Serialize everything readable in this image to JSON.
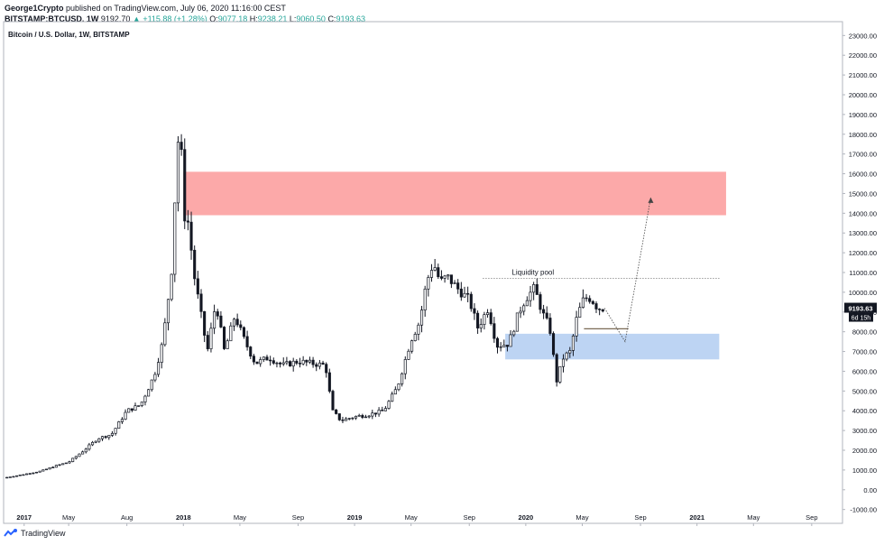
{
  "header": {
    "author": "George1Crypto",
    "published": "published on TradingView.com, July 06, 2020 11:16:00 CEST",
    "symbol": "BITSTAMP:BTCUSD, 1W",
    "last": "9192.70",
    "change": "▲ +115.88 (+1.28%)",
    "o_label": "O:",
    "o_value": "9077.18",
    "h_label": "H:",
    "h_value": "9238.21",
    "l_label": "L:",
    "l_value": "9060.50",
    "c_label": "C:",
    "c_value": "9193.63"
  },
  "footer": {
    "brand": "TradingView"
  },
  "colors": {
    "candle": "#131722",
    "resistance_zone": "#fca9a9",
    "support_zone": "#bdd4f3",
    "grid_border": "#b2b5be"
  },
  "chart_data": {
    "type": "candlestick",
    "title": "Bitcoin / U.S. Dollar, 1W, BITSTAMP",
    "y_ticks": [
      "23000.00",
      "22000.00",
      "21000.00",
      "20000.00",
      "19000.00",
      "18000.00",
      "17000.00",
      "16000.00",
      "15000.00",
      "14000.00",
      "13000.00",
      "12000.00",
      "11000.00",
      "10000.00",
      "9000.00",
      "8000.00",
      "7000.00",
      "6000.00",
      "5000.00",
      "4000.00",
      "3000.00",
      "2000.00",
      "1000.00",
      "0.00",
      "-1000.00"
    ],
    "ylim": [
      -1700,
      23700
    ],
    "x_ticks": [
      {
        "t": 0.07,
        "label": "2017",
        "bold": true
      },
      {
        "t": 0.33,
        "label": "May",
        "bold": false
      },
      {
        "t": 0.67,
        "label": "Aug",
        "bold": false
      },
      {
        "t": 1.0,
        "label": "2018",
        "bold": true
      },
      {
        "t": 1.33,
        "label": "May",
        "bold": false
      },
      {
        "t": 1.67,
        "label": "Sep",
        "bold": false
      },
      {
        "t": 2.0,
        "label": "2019",
        "bold": true
      },
      {
        "t": 2.33,
        "label": "May",
        "bold": false
      },
      {
        "t": 2.67,
        "label": "Sep",
        "bold": false
      },
      {
        "t": 3.0,
        "label": "2020",
        "bold": true
      },
      {
        "t": 3.33,
        "label": "May",
        "bold": false
      },
      {
        "t": 3.67,
        "label": "Sep",
        "bold": false
      },
      {
        "t": 4.0,
        "label": "2021",
        "bold": true
      },
      {
        "t": 4.33,
        "label": "May",
        "bold": false
      },
      {
        "t": 4.67,
        "label": "Sep",
        "bold": false
      }
    ],
    "price_path": [
      [
        -0.05,
        600
      ],
      [
        0.05,
        750
      ],
      [
        0.17,
        950
      ],
      [
        0.25,
        1200
      ],
      [
        0.33,
        1400
      ],
      [
        0.42,
        2000
      ],
      [
        0.5,
        2600
      ],
      [
        0.58,
        2800
      ],
      [
        0.67,
        4000
      ],
      [
        0.75,
        4300
      ],
      [
        0.83,
        5800
      ],
      [
        0.88,
        7500
      ],
      [
        0.93,
        11000
      ],
      [
        0.96,
        16500
      ],
      [
        0.98,
        19000
      ],
      [
        1.0,
        14000
      ],
      [
        1.03,
        13500
      ],
      [
        1.06,
        11000
      ],
      [
        1.1,
        9000
      ],
      [
        1.14,
        7000
      ],
      [
        1.19,
        9500
      ],
      [
        1.24,
        7000
      ],
      [
        1.3,
        8800
      ],
      [
        1.36,
        7500
      ],
      [
        1.42,
        6400
      ],
      [
        1.5,
        6700
      ],
      [
        1.58,
        6300
      ],
      [
        1.67,
        6500
      ],
      [
        1.75,
        6400
      ],
      [
        1.83,
        6300
      ],
      [
        1.87,
        4000
      ],
      [
        1.92,
        3500
      ],
      [
        2.0,
        3700
      ],
      [
        2.08,
        3800
      ],
      [
        2.17,
        4000
      ],
      [
        2.25,
        5200
      ],
      [
        2.33,
        7600
      ],
      [
        2.38,
        8500
      ],
      [
        2.42,
        10500
      ],
      [
        2.46,
        11500
      ],
      [
        2.5,
        10500
      ],
      [
        2.54,
        10800
      ],
      [
        2.6,
        10200
      ],
      [
        2.67,
        9600
      ],
      [
        2.72,
        8200
      ],
      [
        2.78,
        9200
      ],
      [
        2.83,
        7300
      ],
      [
        2.9,
        7400
      ],
      [
        2.96,
        9000
      ],
      [
        3.0,
        9700
      ],
      [
        3.05,
        10200
      ],
      [
        3.1,
        8900
      ],
      [
        3.14,
        8200
      ],
      [
        3.18,
        5500
      ],
      [
        3.22,
        6700
      ],
      [
        3.26,
        7000
      ],
      [
        3.3,
        8800
      ],
      [
        3.34,
        9700
      ],
      [
        3.38,
        9700
      ],
      [
        3.42,
        9200
      ],
      [
        3.46,
        9193
      ]
    ],
    "zones": [
      {
        "name": "resistance",
        "from": 13900,
        "to": 16100,
        "x_start": 1.0,
        "x_end": 4.17
      },
      {
        "name": "support",
        "from": 6600,
        "to": 7900,
        "x_start": 2.88,
        "x_end": 4.13
      }
    ],
    "liquidity_line": {
      "label": "Liquidity pool",
      "value": 10700,
      "x_start": 2.75,
      "x_end": 4.13
    },
    "support_line": {
      "value": 8150,
      "x_start": 3.34,
      "x_end": 3.6
    },
    "projection": [
      [
        3.46,
        9193
      ],
      [
        3.58,
        7500
      ],
      [
        3.73,
        14800
      ]
    ],
    "last_price_label": "9193.63",
    "countdown_label": "6d 15h"
  }
}
